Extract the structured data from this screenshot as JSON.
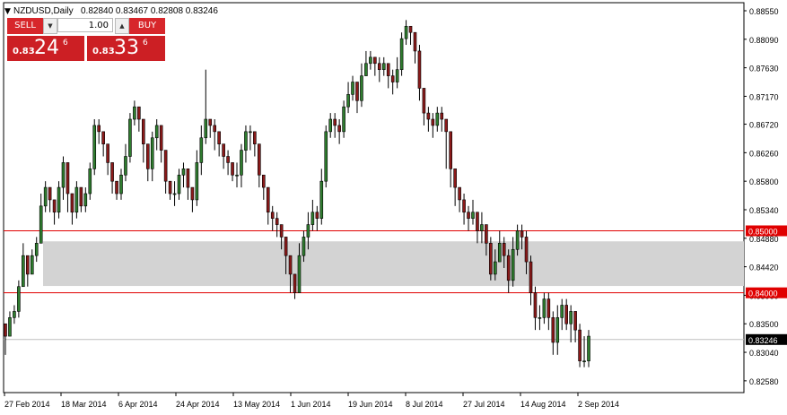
{
  "header": {
    "symbol": "NZDUSD,Daily",
    "ohlc": "0.82840 0.83467 0.82808 0.83246"
  },
  "trade_panel": {
    "sell_label": "SELL",
    "buy_label": "BUY",
    "lot_value": "1.00",
    "sell_price_small": "0.83",
    "sell_price_big": "24",
    "sell_price_sup": "6",
    "buy_price_small": "0.83",
    "buy_price_big": "33",
    "buy_price_sup": "6"
  },
  "colors": {
    "bull": "#2f7d2f",
    "bear": "#8b1a1a",
    "level_line": "#e00000",
    "zone": "#d3d3d3",
    "current_price_bg": "#000000",
    "trade_red": "#d7262b"
  },
  "icons": [
    "triangle-down-icon",
    "triangle-up-icon"
  ],
  "chart_data": {
    "type": "candlestick",
    "title": "NZDUSD,Daily",
    "ylim": [
      0.8239,
      0.8868
    ],
    "y_ticks": [
      "0.88550",
      "0.88090",
      "0.87630",
      "0.87170",
      "0.86720",
      "0.86260",
      "0.85800",
      "0.85340",
      "0.84880",
      "0.84420",
      "0.83960",
      "0.83500",
      "0.83040",
      "0.82580"
    ],
    "x_labels": [
      "27 Feb 2014",
      "18 Mar 2014",
      "6 Apr 2014",
      "24 Apr 2014",
      "13 May 2014",
      "1 Jun 2014",
      "19 Jun 2014",
      "8 Jul 2014",
      "27 Jul 2014",
      "14 Aug 2014",
      "2 Sep 2014"
    ],
    "levels": [
      {
        "value": 0.85,
        "label": "0.85000"
      },
      {
        "value": 0.84,
        "label": "0.84000"
      }
    ],
    "zone": [
      0.8411,
      0.8483
    ],
    "current_price": {
      "value": 0.83246,
      "label": "0.83246"
    },
    "grid": false,
    "series": [
      {
        "name": "NZDUSD",
        "close": [
          0.833,
          0.836,
          0.837,
          0.841,
          0.846,
          0.843,
          0.846,
          0.848,
          0.854,
          0.857,
          0.855,
          0.853,
          0.857,
          0.861,
          0.856,
          0.853,
          0.857,
          0.854,
          0.856,
          0.86,
          0.867,
          0.866,
          0.864,
          0.861,
          0.858,
          0.856,
          0.859,
          0.862,
          0.868,
          0.87,
          0.868,
          0.864,
          0.86,
          0.865,
          0.867,
          0.863,
          0.858,
          0.856,
          0.856,
          0.859,
          0.86,
          0.857,
          0.855,
          0.861,
          0.865,
          0.868,
          0.867,
          0.866,
          0.864,
          0.862,
          0.861,
          0.859,
          0.859,
          0.863,
          0.866,
          0.866,
          0.864,
          0.859,
          0.857,
          0.853,
          0.852,
          0.851,
          0.849,
          0.846,
          0.843,
          0.84,
          0.846,
          0.849,
          0.851,
          0.853,
          0.852,
          0.858,
          0.866,
          0.868,
          0.867,
          0.866,
          0.87,
          0.872,
          0.874,
          0.871,
          0.875,
          0.877,
          0.878,
          0.877,
          0.876,
          0.877,
          0.875,
          0.874,
          0.876,
          0.881,
          0.883,
          0.882,
          0.879,
          0.873,
          0.869,
          0.868,
          0.867,
          0.869,
          0.868,
          0.866,
          0.86,
          0.857,
          0.855,
          0.853,
          0.852,
          0.853,
          0.85,
          0.851,
          0.848,
          0.843,
          0.845,
          0.848,
          0.846,
          0.842,
          0.847,
          0.85,
          0.849,
          0.845,
          0.84,
          0.836,
          0.836,
          0.839,
          0.836,
          0.832,
          0.836,
          0.838,
          0.835,
          0.837,
          0.834,
          0.829,
          0.829,
          0.833
        ],
        "high": [
          0.834,
          0.837,
          0.838,
          0.842,
          0.848,
          0.845,
          0.847,
          0.849,
          0.856,
          0.858,
          0.857,
          0.855,
          0.858,
          0.862,
          0.858,
          0.855,
          0.858,
          0.856,
          0.857,
          0.861,
          0.868,
          0.868,
          0.866,
          0.863,
          0.86,
          0.858,
          0.86,
          0.864,
          0.869,
          0.871,
          0.869,
          0.866,
          0.862,
          0.866,
          0.868,
          0.865,
          0.86,
          0.858,
          0.858,
          0.86,
          0.861,
          0.859,
          0.857,
          0.863,
          0.867,
          0.876,
          0.868,
          0.868,
          0.866,
          0.864,
          0.863,
          0.861,
          0.861,
          0.864,
          0.867,
          0.867,
          0.866,
          0.861,
          0.859,
          0.855,
          0.854,
          0.853,
          0.851,
          0.848,
          0.845,
          0.843,
          0.848,
          0.85,
          0.853,
          0.855,
          0.854,
          0.86,
          0.867,
          0.869,
          0.869,
          0.868,
          0.871,
          0.874,
          0.875,
          0.873,
          0.877,
          0.879,
          0.879,
          0.878,
          0.878,
          0.878,
          0.877,
          0.876,
          0.878,
          0.882,
          0.884,
          0.883,
          0.882,
          0.88,
          0.872,
          0.87,
          0.869,
          0.87,
          0.87,
          0.868,
          0.866,
          0.859,
          0.857,
          0.856,
          0.854,
          0.855,
          0.853,
          0.853,
          0.851,
          0.849,
          0.847,
          0.85,
          0.849,
          0.847,
          0.849,
          0.851,
          0.851,
          0.85,
          0.846,
          0.841,
          0.838,
          0.84,
          0.84,
          0.837,
          0.838,
          0.839,
          0.839,
          0.838,
          0.837,
          0.835,
          0.833,
          0.834
        ],
        "low": [
          0.83,
          0.834,
          0.835,
          0.836,
          0.841,
          0.841,
          0.843,
          0.845,
          0.848,
          0.853,
          0.853,
          0.851,
          0.852,
          0.855,
          0.853,
          0.851,
          0.852,
          0.853,
          0.853,
          0.855,
          0.859,
          0.864,
          0.862,
          0.859,
          0.856,
          0.855,
          0.855,
          0.858,
          0.861,
          0.867,
          0.866,
          0.861,
          0.858,
          0.858,
          0.863,
          0.861,
          0.856,
          0.855,
          0.854,
          0.855,
          0.857,
          0.855,
          0.853,
          0.854,
          0.859,
          0.864,
          0.865,
          0.863,
          0.862,
          0.86,
          0.859,
          0.858,
          0.857,
          0.857,
          0.861,
          0.863,
          0.862,
          0.857,
          0.855,
          0.851,
          0.85,
          0.849,
          0.847,
          0.843,
          0.84,
          0.839,
          0.84,
          0.845,
          0.847,
          0.85,
          0.85,
          0.851,
          0.857,
          0.865,
          0.865,
          0.864,
          0.865,
          0.869,
          0.871,
          0.869,
          0.87,
          0.875,
          0.876,
          0.875,
          0.874,
          0.875,
          0.873,
          0.872,
          0.873,
          0.875,
          0.88,
          0.88,
          0.877,
          0.871,
          0.867,
          0.866,
          0.865,
          0.866,
          0.866,
          0.86,
          0.857,
          0.854,
          0.853,
          0.851,
          0.85,
          0.851,
          0.848,
          0.848,
          0.846,
          0.842,
          0.842,
          0.845,
          0.844,
          0.84,
          0.841,
          0.846,
          0.847,
          0.843,
          0.838,
          0.834,
          0.834,
          0.835,
          0.834,
          0.83,
          0.83,
          0.834,
          0.834,
          0.832,
          0.832,
          0.828,
          0.828,
          0.828
        ]
      }
    ]
  }
}
